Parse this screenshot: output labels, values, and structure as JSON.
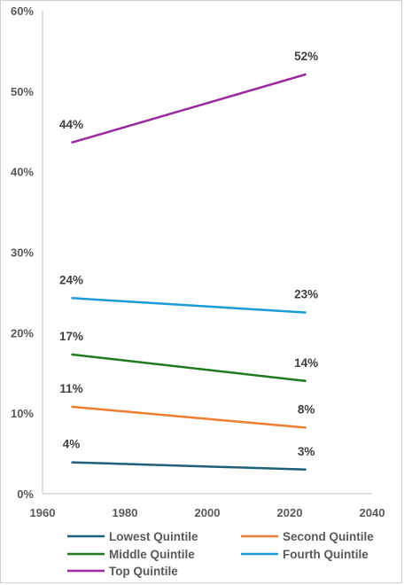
{
  "chart_data": {
    "type": "line",
    "title": "",
    "xlabel": "",
    "ylabel": "",
    "xlim": [
      1960,
      2040
    ],
    "ylim": [
      0,
      60
    ],
    "x_ticks": [
      "1960",
      "1980",
      "2000",
      "2020",
      "2040"
    ],
    "y_ticks": [
      "0%",
      "10%",
      "20%",
      "30%",
      "40%",
      "50%",
      "60%"
    ],
    "grid": false,
    "legend_position": "bottom",
    "series": [
      {
        "name": "Lowest Quintile",
        "color": "#1f5f7a",
        "x": [
          1967,
          2024
        ],
        "y": [
          3.9,
          3.0
        ],
        "labels": [
          "4%",
          "3%"
        ]
      },
      {
        "name": "Second Quintile",
        "color": "#ed7d31",
        "x": [
          1967,
          2024
        ],
        "y": [
          10.8,
          8.2
        ],
        "labels": [
          "11%",
          "8%"
        ]
      },
      {
        "name": "Middle Quintile",
        "color": "#1e7a1e",
        "x": [
          1967,
          2024
        ],
        "y": [
          17.3,
          14.0
        ],
        "labels": [
          "17%",
          "14%"
        ]
      },
      {
        "name": "Fourth Quintile",
        "color": "#1b9bd7",
        "x": [
          1967,
          2024
        ],
        "y": [
          24.3,
          22.5
        ],
        "labels": [
          "24%",
          "23%"
        ]
      },
      {
        "name": "Top Quintile",
        "color": "#9b2b9e",
        "x": [
          1967,
          2024
        ],
        "y": [
          43.6,
          52.1
        ],
        "labels": [
          "44%",
          "52%"
        ]
      }
    ]
  }
}
